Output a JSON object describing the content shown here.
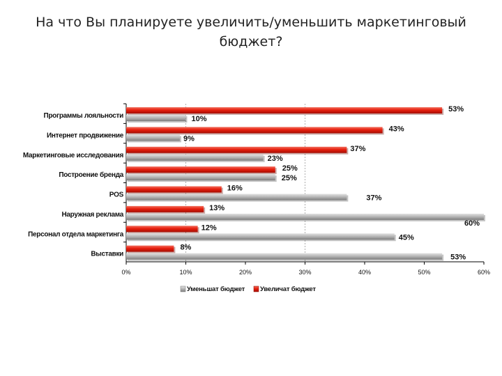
{
  "chart_data": {
    "type": "bar",
    "orientation": "horizontal",
    "title": "На что Вы планируете увеличить/уменьшить маркетинговый бюджет?",
    "categories": [
      "Программы лояльности",
      "Интернет продвижение",
      "Маркетинговые исследования",
      "Построение бренда",
      "POS",
      "Наружная реклама",
      "Персонал отдела маркетинга",
      "Выставки"
    ],
    "series": [
      {
        "name": "Уменьшат бюджет",
        "color": "#b0b0b0",
        "values": [
          10,
          9,
          23,
          25,
          37,
          60,
          45,
          53
        ],
        "labels": [
          "10%",
          "9%",
          "23%",
          "25%",
          "37%",
          "60%",
          "45%",
          "53%"
        ]
      },
      {
        "name": "Увеличат бюджет",
        "color": "#e11d0c",
        "values": [
          53,
          43,
          37,
          25,
          16,
          13,
          12,
          8
        ],
        "labels": [
          "53%",
          "43%",
          "37%",
          "25%",
          "16%",
          "13%",
          "12%",
          "8%"
        ]
      }
    ],
    "xlim": [
      0,
      60
    ],
    "xticks": [
      "0%",
      "10%",
      "20%",
      "30%",
      "40%",
      "50%",
      "60%"
    ],
    "reference_lines": [
      10,
      30
    ],
    "legend_position": "bottom"
  }
}
